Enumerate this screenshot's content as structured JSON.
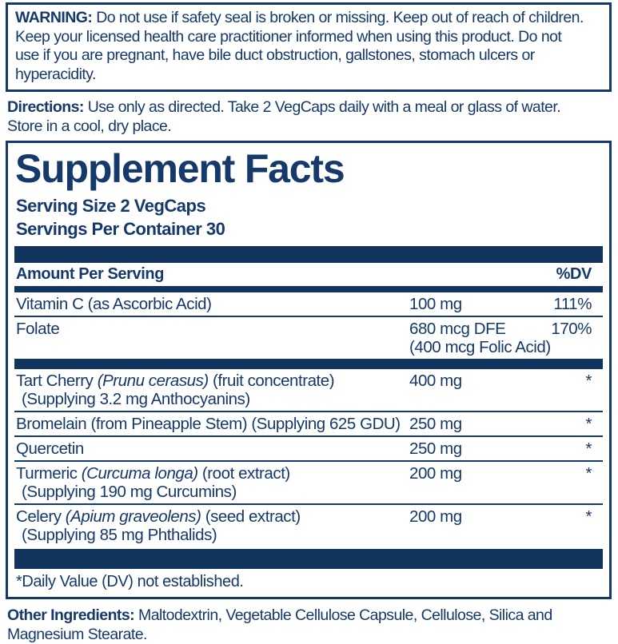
{
  "colors": {
    "text_navy": "#15396a",
    "bar_navy": "#12355e",
    "background": "#ffffff"
  },
  "warning": {
    "label": "WARNING:",
    "line1_rest": "Do not use if safety seal is broken or missing. Keep out of reach of children.",
    "lines": [
      "Keep your licensed health care practitioner informed when using this product. Do not",
      "use if you are pregnant, have bile duct obstruction, gallstones, stomach ulcers or",
      "hyperacidity."
    ]
  },
  "directions": {
    "label": "Directions:",
    "line1_rest": "Use only as directed. Take 2 VegCaps daily with a meal or glass of water.",
    "lines": [
      "Store in a cool, dry place."
    ]
  },
  "supplement_facts": {
    "title": "Supplement Facts",
    "serving_size": "Serving Size 2 VegCaps",
    "servings_per_container": "Servings Per Container 30",
    "header": {
      "amount_per_serving": "Amount Per Serving",
      "dv": "%DV"
    },
    "rows": [
      {
        "name_pre": "Vitamin C (as Ascorbic Acid)",
        "name_italic": "",
        "name_post": "",
        "subline": "",
        "amount": "100 mg",
        "amount_sub": "",
        "dv": "111%"
      },
      {
        "name_pre": "Folate",
        "name_italic": "",
        "name_post": "",
        "subline": "",
        "amount": "680 mcg DFE",
        "amount_sub": "(400 mcg Folic Acid)",
        "dv": "170%"
      },
      {
        "name_pre": "Tart Cherry ",
        "name_italic": "(Prunu cerasus)",
        "name_post": " (fruit concentrate)",
        "subline": "(Supplying 3.2 mg Anthocyanins)",
        "amount": "400 mg",
        "amount_sub": "",
        "dv": "*"
      },
      {
        "name_pre": "Bromelain (from Pineapple Stem) (Supplying 625 GDU)",
        "name_italic": "",
        "name_post": "",
        "subline": "",
        "amount": "250 mg",
        "amount_sub": "",
        "dv": "*"
      },
      {
        "name_pre": "Quercetin",
        "name_italic": "",
        "name_post": "",
        "subline": "",
        "amount": "250 mg",
        "amount_sub": "",
        "dv": "*"
      },
      {
        "name_pre": "Turmeric ",
        "name_italic": "(Curcuma longa)",
        "name_post": " (root extract)",
        "subline": "(Supplying 190 mg Curcumins)",
        "amount": "200 mg",
        "amount_sub": "",
        "dv": "*"
      },
      {
        "name_pre": "Celery ",
        "name_italic": "(Apium graveolens)",
        "name_post": " (seed extract)",
        "subline": "(Supplying 85 mg Phthalids)",
        "amount": "200 mg",
        "amount_sub": "",
        "dv": "*"
      }
    ],
    "footnote": "*Daily Value (DV) not established."
  },
  "other_ingredients": {
    "label": "Other Ingredients:",
    "line1_rest": "Maltodextrin, Vegetable Cellulose Capsule, Cellulose, Silica and",
    "lines": [
      "Magnesium Stearate."
    ]
  }
}
